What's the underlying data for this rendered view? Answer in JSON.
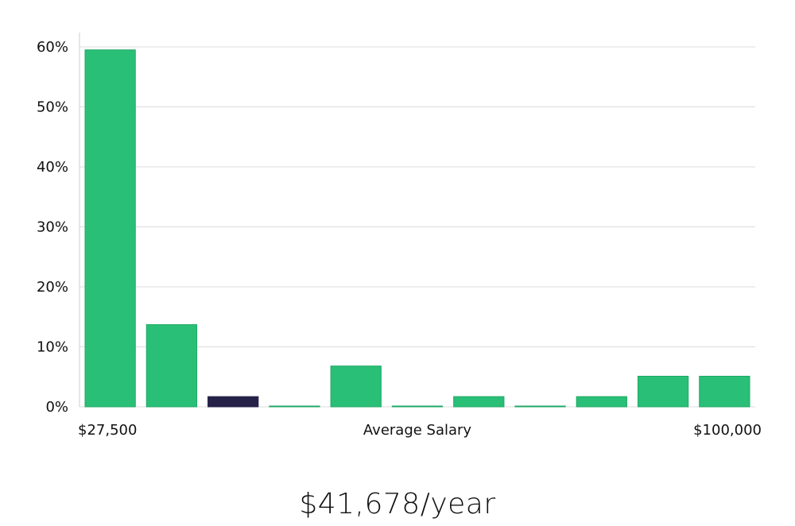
{
  "chart_data": {
    "type": "bar",
    "xlabel": "Average Salary",
    "x_start_label": "$27,500",
    "x_end_label": "$100,000",
    "ylim": [
      0,
      60
    ],
    "y_ticks": [
      {
        "value": 0,
        "label": "0%"
      },
      {
        "value": 10,
        "label": "10%"
      },
      {
        "value": 20,
        "label": "20%"
      },
      {
        "value": 30,
        "label": "30%"
      },
      {
        "value": 40,
        "label": "40%"
      },
      {
        "value": 50,
        "label": "50%"
      },
      {
        "value": 60,
        "label": "60%"
      }
    ],
    "values": [
      59.5,
      13.7,
      1.7,
      0.1,
      6.8,
      0.1,
      1.7,
      0.1,
      1.7,
      5.1,
      5.1
    ],
    "highlight_index": 2,
    "grid": true,
    "colors": {
      "bar": "#2abf77",
      "bar_edge": "#1fa865",
      "highlight": "#25224a",
      "grid": "#dddddd",
      "axis": "#cccccc"
    }
  },
  "salary_text": "$41,678/year"
}
